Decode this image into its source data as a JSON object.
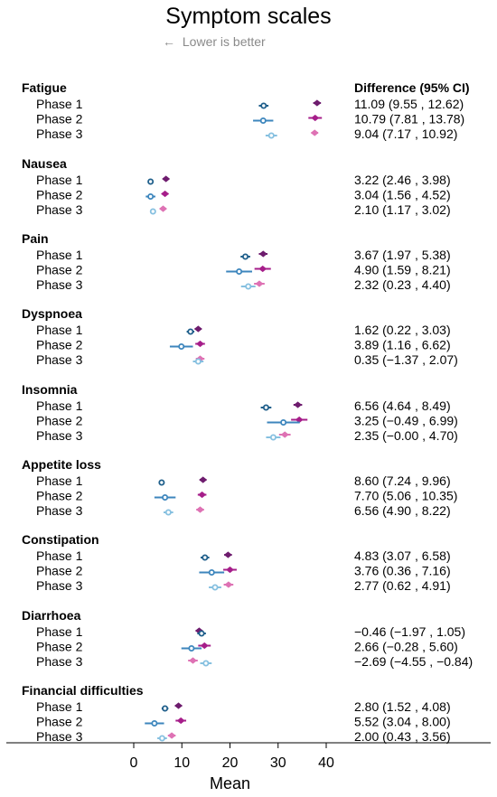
{
  "title": "Symptom scales",
  "subtitle": {
    "arrow": "←",
    "text": "Lower is better"
  },
  "ci_header": "Difference (95% CI)",
  "chart_data": {
    "type": "forest",
    "xlabel": "Mean",
    "xlim": [
      0,
      40
    ],
    "xticks": [
      0,
      10,
      20,
      30,
      40
    ],
    "markers": {
      "open": "comparison (open circle)",
      "filled": "filled diamond"
    },
    "phase_colors": {
      "Phase 1": {
        "open": "#1f5f8b",
        "filled": "#6e1c6e"
      },
      "Phase 2": {
        "open": "#3d86bd",
        "filled": "#a61e8a"
      },
      "Phase 3": {
        "open": "#86c0e0",
        "filled": "#de72b4"
      }
    },
    "groups": [
      {
        "name": "Fatigue",
        "rows": [
          {
            "label": "Phase 1",
            "open": 27.0,
            "open_ci": [
              26.0,
              28.0
            ],
            "filled": 38.1,
            "filled_ci": [
              37.3,
              38.9
            ],
            "ci_text": "11.09 (9.55 , 12.62)"
          },
          {
            "label": "Phase 2",
            "open": 26.9,
            "open_ci": [
              24.8,
              29.0
            ],
            "filled": 37.7,
            "filled_ci": [
              36.3,
              39.1
            ],
            "ci_text": "10.79 (7.81 , 13.78)"
          },
          {
            "label": "Phase 3",
            "open": 28.6,
            "open_ci": [
              27.4,
              29.8
            ],
            "filled": 37.6,
            "filled_ci": [
              36.9,
              38.3
            ],
            "ci_text": "9.04 (7.17 , 10.92)"
          }
        ]
      },
      {
        "name": "Nausea",
        "rows": [
          {
            "label": "Phase 1",
            "open": 3.5,
            "open_ci": [
              3.0,
              4.0
            ],
            "filled": 6.7,
            "filled_ci": [
              6.1,
              7.3
            ],
            "ci_text": "3.22 (2.46 , 3.98)"
          },
          {
            "label": "Phase 2",
            "open": 3.5,
            "open_ci": [
              2.5,
              4.5
            ],
            "filled": 6.5,
            "filled_ci": [
              5.8,
              7.2
            ],
            "ci_text": "3.04 (1.56 , 4.52)"
          },
          {
            "label": "Phase 3",
            "open": 4.0,
            "open_ci": [
              3.4,
              4.6
            ],
            "filled": 6.1,
            "filled_ci": [
              5.5,
              6.7
            ],
            "ci_text": "2.10 (1.17 , 3.02)"
          }
        ]
      },
      {
        "name": "Pain",
        "rows": [
          {
            "label": "Phase 1",
            "open": 23.2,
            "open_ci": [
              22.2,
              24.2
            ],
            "filled": 26.9,
            "filled_ci": [
              26.0,
              27.8
            ],
            "ci_text": "3.67 (1.97 , 5.38)"
          },
          {
            "label": "Phase 2",
            "open": 21.9,
            "open_ci": [
              19.2,
              24.6
            ],
            "filled": 26.8,
            "filled_ci": [
              25.1,
              28.5
            ],
            "ci_text": "4.90 (1.59 , 8.21)"
          },
          {
            "label": "Phase 3",
            "open": 23.8,
            "open_ci": [
              22.3,
              25.3
            ],
            "filled": 26.1,
            "filled_ci": [
              25.0,
              27.2
            ],
            "ci_text": "2.32 (0.23 , 4.40)"
          }
        ]
      },
      {
        "name": "Dyspnoea",
        "rows": [
          {
            "label": "Phase 1",
            "open": 11.8,
            "open_ci": [
              11.0,
              12.6
            ],
            "filled": 13.4,
            "filled_ci": [
              12.7,
              14.1
            ],
            "ci_text": "1.62 (0.22 , 3.03)"
          },
          {
            "label": "Phase 2",
            "open": 9.9,
            "open_ci": [
              7.5,
              12.3
            ],
            "filled": 13.8,
            "filled_ci": [
              12.8,
              14.8
            ],
            "ci_text": "3.89 (1.16 , 6.62)"
          },
          {
            "label": "Phase 3",
            "open": 13.4,
            "open_ci": [
              12.3,
              14.5
            ],
            "filled": 13.8,
            "filled_ci": [
              12.9,
              14.7
            ],
            "ci_text": "0.35 (−1.37 , 2.07)"
          }
        ]
      },
      {
        "name": "Insomnia",
        "rows": [
          {
            "label": "Phase 1",
            "open": 27.5,
            "open_ci": [
              26.4,
              28.6
            ],
            "filled": 34.1,
            "filled_ci": [
              33.2,
              35.0
            ],
            "ci_text": "6.56 (4.64 , 8.49)"
          },
          {
            "label": "Phase 2",
            "open": 31.1,
            "open_ci": [
              27.7,
              34.5
            ],
            "filled": 34.4,
            "filled_ci": [
              32.7,
              36.1
            ],
            "ci_text": "3.25 (−0.49 , 6.99)"
          },
          {
            "label": "Phase 3",
            "open": 29.0,
            "open_ci": [
              27.5,
              30.5
            ],
            "filled": 31.4,
            "filled_ci": [
              30.2,
              32.6
            ],
            "ci_text": "2.35 (−0.00 , 4.70)"
          }
        ]
      },
      {
        "name": "Appetite loss",
        "rows": [
          {
            "label": "Phase 1",
            "open": 5.8,
            "open_ci": [
              5.2,
              6.4
            ],
            "filled": 14.4,
            "filled_ci": [
              13.7,
              15.1
            ],
            "ci_text": "8.60 (7.24 , 9.96)"
          },
          {
            "label": "Phase 2",
            "open": 6.5,
            "open_ci": [
              4.3,
              8.7
            ],
            "filled": 14.2,
            "filled_ci": [
              13.3,
              15.1
            ],
            "ci_text": "7.70 (5.06 , 10.35)"
          },
          {
            "label": "Phase 3",
            "open": 7.2,
            "open_ci": [
              6.2,
              8.2
            ],
            "filled": 13.8,
            "filled_ci": [
              13.0,
              14.6
            ],
            "ci_text": "6.56 (4.90 , 8.22)"
          }
        ]
      },
      {
        "name": "Constipation",
        "rows": [
          {
            "label": "Phase 1",
            "open": 14.8,
            "open_ci": [
              13.9,
              15.7
            ],
            "filled": 19.6,
            "filled_ci": [
              18.8,
              20.4
            ],
            "ci_text": "4.83 (3.07 , 6.58)"
          },
          {
            "label": "Phase 2",
            "open": 16.2,
            "open_ci": [
              13.6,
              18.8
            ],
            "filled": 20.0,
            "filled_ci": [
              18.6,
              21.4
            ],
            "ci_text": "3.76 (0.36 , 7.16)"
          },
          {
            "label": "Phase 3",
            "open": 16.9,
            "open_ci": [
              15.6,
              18.2
            ],
            "filled": 19.7,
            "filled_ci": [
              18.7,
              20.7
            ],
            "ci_text": "2.77 (0.62 , 4.91)"
          }
        ]
      },
      {
        "name": "Diarrhoea",
        "rows": [
          {
            "label": "Phase 1",
            "open": 14.1,
            "open_ci": [
              13.2,
              15.0
            ],
            "filled": 13.6,
            "filled_ci": [
              12.9,
              14.3
            ],
            "ci_text": "−0.46 (−1.97 , 1.05)"
          },
          {
            "label": "Phase 2",
            "open": 12.0,
            "open_ci": [
              9.9,
              14.1
            ],
            "filled": 14.7,
            "filled_ci": [
              13.4,
              16.0
            ],
            "ci_text": "2.66 (−0.28 , 5.60)"
          },
          {
            "label": "Phase 3",
            "open": 15.0,
            "open_ci": [
              13.8,
              16.2
            ],
            "filled": 12.3,
            "filled_ci": [
              11.3,
              13.3
            ],
            "ci_text": "−2.69 (−4.55 , −0.84)"
          }
        ]
      },
      {
        "name": "Financial difficulties",
        "rows": [
          {
            "label": "Phase 1",
            "open": 6.5,
            "open_ci": [
              5.8,
              7.2
            ],
            "filled": 9.3,
            "filled_ci": [
              8.6,
              10.0
            ],
            "ci_text": "2.80 (1.52 , 4.08)"
          },
          {
            "label": "Phase 2",
            "open": 4.3,
            "open_ci": [
              2.3,
              6.3
            ],
            "filled": 9.8,
            "filled_ci": [
              8.7,
              10.9
            ],
            "ci_text": "5.52 (3.04 , 8.00)"
          },
          {
            "label": "Phase 3",
            "open": 5.9,
            "open_ci": [
              4.9,
              6.9
            ],
            "filled": 7.9,
            "filled_ci": [
              7.1,
              8.7
            ],
            "ci_text": "2.00 (0.43 , 3.56)"
          }
        ]
      }
    ]
  }
}
